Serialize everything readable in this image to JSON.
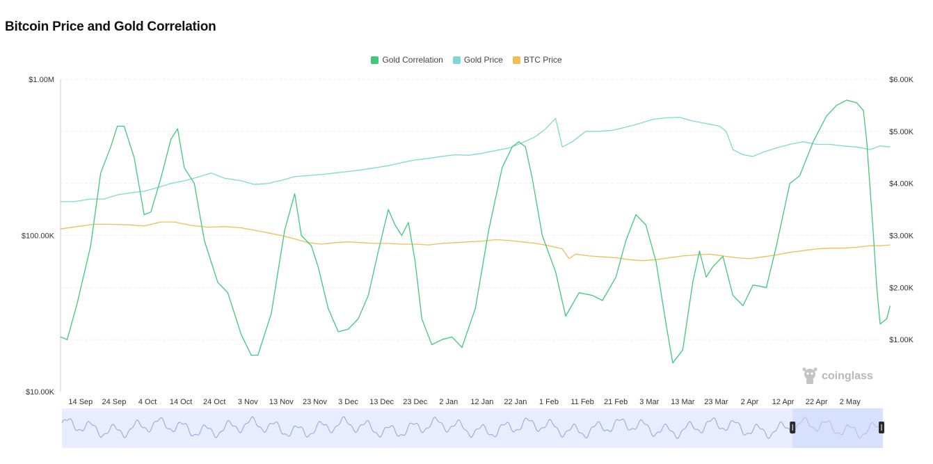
{
  "page": {
    "title": "Bitcoin Price and Gold Correlation"
  },
  "brand": {
    "watermark": "coinglass"
  },
  "colors": {
    "correlation": "#3ec97a",
    "gold": "#7fd8d6",
    "btc": "#edbf55",
    "navigator_line": "#8da2e8",
    "navigator_fill": "#e8eeff"
  },
  "chart_data": {
    "type": "line",
    "title": "Bitcoin Price and Gold Correlation",
    "legend": {
      "placement": "top-center",
      "entries": [
        {
          "key": "correlation",
          "label": "Gold Correlation",
          "color": "#3ec97a"
        },
        {
          "key": "gold",
          "label": "Gold Price",
          "color": "#7fd8d6"
        },
        {
          "key": "btc",
          "label": "BTC Price",
          "color": "#edbf55"
        }
      ]
    },
    "x_axis": {
      "type": "date",
      "range": [
        "2024-09-08",
        "2025-05-11"
      ],
      "ticks": [
        {
          "date": "2024-09-14",
          "label": "14 Sep"
        },
        {
          "date": "2024-09-24",
          "label": "24 Sep"
        },
        {
          "date": "2024-10-04",
          "label": "4 Oct"
        },
        {
          "date": "2024-10-14",
          "label": "14 Oct"
        },
        {
          "date": "2024-10-24",
          "label": "24 Oct"
        },
        {
          "date": "2024-11-03",
          "label": "3 Nov"
        },
        {
          "date": "2024-11-13",
          "label": "13 Nov"
        },
        {
          "date": "2024-11-23",
          "label": "23 Nov"
        },
        {
          "date": "2024-12-03",
          "label": "3 Dec"
        },
        {
          "date": "2024-12-13",
          "label": "13 Dec"
        },
        {
          "date": "2024-12-23",
          "label": "23 Dec"
        },
        {
          "date": "2025-01-02",
          "label": "2 Jan"
        },
        {
          "date": "2025-01-12",
          "label": "12 Jan"
        },
        {
          "date": "2025-01-22",
          "label": "22 Jan"
        },
        {
          "date": "2025-02-01",
          "label": "1 Feb"
        },
        {
          "date": "2025-02-11",
          "label": "11 Feb"
        },
        {
          "date": "2025-02-21",
          "label": "21 Feb"
        },
        {
          "date": "2025-03-03",
          "label": "3 Mar"
        },
        {
          "date": "2025-03-13",
          "label": "13 Mar"
        },
        {
          "date": "2025-03-23",
          "label": "23 Mar"
        },
        {
          "date": "2025-04-02",
          "label": "2 Apr"
        },
        {
          "date": "2025-04-12",
          "label": "12 Apr"
        },
        {
          "date": "2025-04-22",
          "label": "22 Apr"
        },
        {
          "date": "2025-05-02",
          "label": "2 May"
        }
      ]
    },
    "y_left": {
      "scale": "log",
      "min": 10000,
      "max": 1000000,
      "ticks": [
        {
          "value": 1000000,
          "label": "$1.00M"
        },
        {
          "value": 100000,
          "label": "$100.00K"
        },
        {
          "value": 10000,
          "label": "$10.00K"
        }
      ]
    },
    "y_right": {
      "scale": "linear",
      "min": 0,
      "max": 6000,
      "ticks": [
        {
          "value": 6000,
          "label": "$6.00K"
        },
        {
          "value": 5000,
          "label": "$5.00K"
        },
        {
          "value": 4000,
          "label": "$4.00K"
        },
        {
          "value": 3000,
          "label": "$3.00K"
        },
        {
          "value": 2000,
          "label": "$2.00K"
        },
        {
          "value": 1000,
          "label": "$1.00K"
        }
      ]
    },
    "grid": {
      "horizontal": true,
      "vertical": false
    },
    "series": [
      {
        "key": "correlation",
        "name": "Gold Correlation",
        "axis": "right",
        "points": [
          [
            "2024-09-08",
            1050
          ],
          [
            "2024-09-10",
            1000
          ],
          [
            "2024-09-13",
            1700
          ],
          [
            "2024-09-17",
            2800
          ],
          [
            "2024-09-20",
            4200
          ],
          [
            "2024-09-23",
            4700
          ],
          [
            "2024-09-25",
            5100
          ],
          [
            "2024-09-27",
            5100
          ],
          [
            "2024-09-30",
            4500
          ],
          [
            "2024-10-03",
            3400
          ],
          [
            "2024-10-05",
            3450
          ],
          [
            "2024-10-08",
            4100
          ],
          [
            "2024-10-11",
            4850
          ],
          [
            "2024-10-13",
            5050
          ],
          [
            "2024-10-15",
            4300
          ],
          [
            "2024-10-18",
            4000
          ],
          [
            "2024-10-21",
            2900
          ],
          [
            "2024-10-25",
            2100
          ],
          [
            "2024-10-28",
            1900
          ],
          [
            "2024-11-01",
            1100
          ],
          [
            "2024-11-04",
            700
          ],
          [
            "2024-11-06",
            700
          ],
          [
            "2024-11-10",
            1500
          ],
          [
            "2024-11-14",
            3100
          ],
          [
            "2024-11-17",
            3800
          ],
          [
            "2024-11-19",
            3000
          ],
          [
            "2024-11-22",
            2800
          ],
          [
            "2024-11-24",
            2400
          ],
          [
            "2024-11-27",
            1600
          ],
          [
            "2024-11-30",
            1150
          ],
          [
            "2024-12-03",
            1200
          ],
          [
            "2024-12-06",
            1400
          ],
          [
            "2024-12-09",
            1850
          ],
          [
            "2024-12-12",
            2700
          ],
          [
            "2024-12-15",
            3500
          ],
          [
            "2024-12-17",
            3200
          ],
          [
            "2024-12-19",
            3000
          ],
          [
            "2024-12-21",
            3250
          ],
          [
            "2024-12-23",
            2500
          ],
          [
            "2024-12-25",
            1400
          ],
          [
            "2024-12-28",
            900
          ],
          [
            "2024-12-31",
            1000
          ],
          [
            "2025-01-03",
            1050
          ],
          [
            "2025-01-06",
            850
          ],
          [
            "2025-01-10",
            1600
          ],
          [
            "2025-01-14",
            3100
          ],
          [
            "2025-01-18",
            4300
          ],
          [
            "2025-01-21",
            4700
          ],
          [
            "2025-01-23",
            4800
          ],
          [
            "2025-01-25",
            4700
          ],
          [
            "2025-01-27",
            4100
          ],
          [
            "2025-01-30",
            3000
          ],
          [
            "2025-02-03",
            2300
          ],
          [
            "2025-02-06",
            1450
          ],
          [
            "2025-02-10",
            1900
          ],
          [
            "2025-02-14",
            1850
          ],
          [
            "2025-02-17",
            1750
          ],
          [
            "2025-02-21",
            2200
          ],
          [
            "2025-02-24",
            2900
          ],
          [
            "2025-02-27",
            3400
          ],
          [
            "2025-03-02",
            3200
          ],
          [
            "2025-03-05",
            2500
          ],
          [
            "2025-03-08",
            1300
          ],
          [
            "2025-03-10",
            550
          ],
          [
            "2025-03-13",
            800
          ],
          [
            "2025-03-16",
            2100
          ],
          [
            "2025-03-18",
            2700
          ],
          [
            "2025-03-20",
            2200
          ],
          [
            "2025-03-22",
            2400
          ],
          [
            "2025-03-25",
            2600
          ],
          [
            "2025-03-28",
            1850
          ],
          [
            "2025-03-31",
            1650
          ],
          [
            "2025-04-03",
            2050
          ],
          [
            "2025-04-07",
            2000
          ],
          [
            "2025-04-10",
            2800
          ],
          [
            "2025-04-14",
            4000
          ],
          [
            "2025-04-17",
            4150
          ],
          [
            "2025-04-21",
            4800
          ],
          [
            "2025-04-25",
            5300
          ],
          [
            "2025-04-28",
            5500
          ],
          [
            "2025-05-01",
            5600
          ],
          [
            "2025-05-04",
            5550
          ],
          [
            "2025-05-06",
            5400
          ],
          [
            "2025-05-07",
            4800
          ],
          [
            "2025-05-08",
            3900
          ],
          [
            "2025-05-09",
            3000
          ],
          [
            "2025-05-10",
            2000
          ],
          [
            "2025-05-11",
            1300
          ],
          [
            "2025-05-12",
            1350
          ],
          [
            "2025-05-13",
            1400
          ],
          [
            "2025-05-14",
            1650
          ]
        ]
      },
      {
        "key": "gold",
        "name": "Gold Price",
        "axis": "right",
        "points": [
          [
            "2024-09-08",
            3650
          ],
          [
            "2024-09-12",
            3650
          ],
          [
            "2024-09-17",
            3700
          ],
          [
            "2024-09-21",
            3700
          ],
          [
            "2024-09-25",
            3780
          ],
          [
            "2024-09-29",
            3820
          ],
          [
            "2024-10-03",
            3850
          ],
          [
            "2024-10-07",
            3920
          ],
          [
            "2024-10-11",
            4000
          ],
          [
            "2024-10-15",
            4050
          ],
          [
            "2024-10-19",
            4120
          ],
          [
            "2024-10-23",
            4200
          ],
          [
            "2024-10-27",
            4100
          ],
          [
            "2024-11-01",
            4050
          ],
          [
            "2024-11-05",
            3980
          ],
          [
            "2024-11-09",
            4000
          ],
          [
            "2024-11-13",
            4060
          ],
          [
            "2024-11-17",
            4130
          ],
          [
            "2024-11-21",
            4150
          ],
          [
            "2024-11-25",
            4170
          ],
          [
            "2024-11-29",
            4200
          ],
          [
            "2024-12-03",
            4230
          ],
          [
            "2024-12-07",
            4260
          ],
          [
            "2024-12-11",
            4300
          ],
          [
            "2024-12-15",
            4340
          ],
          [
            "2024-12-19",
            4400
          ],
          [
            "2024-12-23",
            4450
          ],
          [
            "2024-12-27",
            4480
          ],
          [
            "2024-12-31",
            4520
          ],
          [
            "2025-01-04",
            4550
          ],
          [
            "2025-01-08",
            4540
          ],
          [
            "2025-01-12",
            4580
          ],
          [
            "2025-01-16",
            4630
          ],
          [
            "2025-01-20",
            4680
          ],
          [
            "2025-01-24",
            4780
          ],
          [
            "2025-01-28",
            4900
          ],
          [
            "2025-01-31",
            5050
          ],
          [
            "2025-02-03",
            5250
          ],
          [
            "2025-02-05",
            4700
          ],
          [
            "2025-02-08",
            4800
          ],
          [
            "2025-02-12",
            5000
          ],
          [
            "2025-02-16",
            5000
          ],
          [
            "2025-02-20",
            5020
          ],
          [
            "2025-02-24",
            5080
          ],
          [
            "2025-02-28",
            5150
          ],
          [
            "2025-03-04",
            5230
          ],
          [
            "2025-03-08",
            5260
          ],
          [
            "2025-03-12",
            5270
          ],
          [
            "2025-03-16",
            5200
          ],
          [
            "2025-03-20",
            5150
          ],
          [
            "2025-03-24",
            5100
          ],
          [
            "2025-03-26",
            5000
          ],
          [
            "2025-03-28",
            4650
          ],
          [
            "2025-03-31",
            4550
          ],
          [
            "2025-04-03",
            4520
          ],
          [
            "2025-04-06",
            4600
          ],
          [
            "2025-04-10",
            4680
          ],
          [
            "2025-04-14",
            4750
          ],
          [
            "2025-04-18",
            4800
          ],
          [
            "2025-04-22",
            4750
          ],
          [
            "2025-04-26",
            4750
          ],
          [
            "2025-04-30",
            4720
          ],
          [
            "2025-05-04",
            4700
          ],
          [
            "2025-05-08",
            4650
          ],
          [
            "2025-05-11",
            4720
          ],
          [
            "2025-05-14",
            4700
          ]
        ]
      },
      {
        "key": "btc",
        "name": "BTC Price",
        "axis": "left",
        "points": [
          [
            "2024-09-08",
            110000
          ],
          [
            "2024-09-13",
            114000
          ],
          [
            "2024-09-18",
            118000
          ],
          [
            "2024-09-23",
            118000
          ],
          [
            "2024-09-28",
            117000
          ],
          [
            "2024-10-03",
            115000
          ],
          [
            "2024-10-08",
            122000
          ],
          [
            "2024-10-12",
            122000
          ],
          [
            "2024-10-17",
            116000
          ],
          [
            "2024-10-22",
            113000
          ],
          [
            "2024-10-27",
            114000
          ],
          [
            "2024-11-01",
            112000
          ],
          [
            "2024-11-05",
            108000
          ],
          [
            "2024-11-09",
            104000
          ],
          [
            "2024-11-13",
            100000
          ],
          [
            "2024-11-17",
            95000
          ],
          [
            "2024-11-21",
            90000
          ],
          [
            "2024-11-25",
            88000
          ],
          [
            "2024-11-29",
            90000
          ],
          [
            "2024-12-03",
            91000
          ],
          [
            "2024-12-07",
            90000
          ],
          [
            "2024-12-11",
            89000
          ],
          [
            "2024-12-15",
            89000
          ],
          [
            "2024-12-19",
            88000
          ],
          [
            "2024-12-23",
            88000
          ],
          [
            "2024-12-27",
            87000
          ],
          [
            "2024-12-31",
            89000
          ],
          [
            "2025-01-04",
            90000
          ],
          [
            "2025-01-08",
            91000
          ],
          [
            "2025-01-12",
            92000
          ],
          [
            "2025-01-16",
            94000
          ],
          [
            "2025-01-20",
            93000
          ],
          [
            "2025-01-24",
            91000
          ],
          [
            "2025-01-28",
            89000
          ],
          [
            "2025-02-01",
            86000
          ],
          [
            "2025-02-05",
            82000
          ],
          [
            "2025-02-07",
            71000
          ],
          [
            "2025-02-09",
            76000
          ],
          [
            "2025-02-13",
            74000
          ],
          [
            "2025-02-17",
            73000
          ],
          [
            "2025-02-21",
            72000
          ],
          [
            "2025-02-25",
            70000
          ],
          [
            "2025-03-01",
            69000
          ],
          [
            "2025-03-05",
            70000
          ],
          [
            "2025-03-09",
            72000
          ],
          [
            "2025-03-13",
            74000
          ],
          [
            "2025-03-17",
            75000
          ],
          [
            "2025-03-21",
            76000
          ],
          [
            "2025-03-25",
            74000
          ],
          [
            "2025-03-29",
            72000
          ],
          [
            "2025-04-02",
            71000
          ],
          [
            "2025-04-06",
            73000
          ],
          [
            "2025-04-10",
            75000
          ],
          [
            "2025-04-14",
            78000
          ],
          [
            "2025-04-18",
            80000
          ],
          [
            "2025-04-22",
            82000
          ],
          [
            "2025-04-26",
            83000
          ],
          [
            "2025-04-30",
            83000
          ],
          [
            "2025-05-04",
            84000
          ],
          [
            "2025-05-08",
            86000
          ],
          [
            "2025-05-11",
            86000
          ],
          [
            "2025-05-14",
            87000
          ]
        ]
      }
    ],
    "navigator": {
      "selected_fraction": [
        0.89,
        1.0
      ]
    }
  }
}
